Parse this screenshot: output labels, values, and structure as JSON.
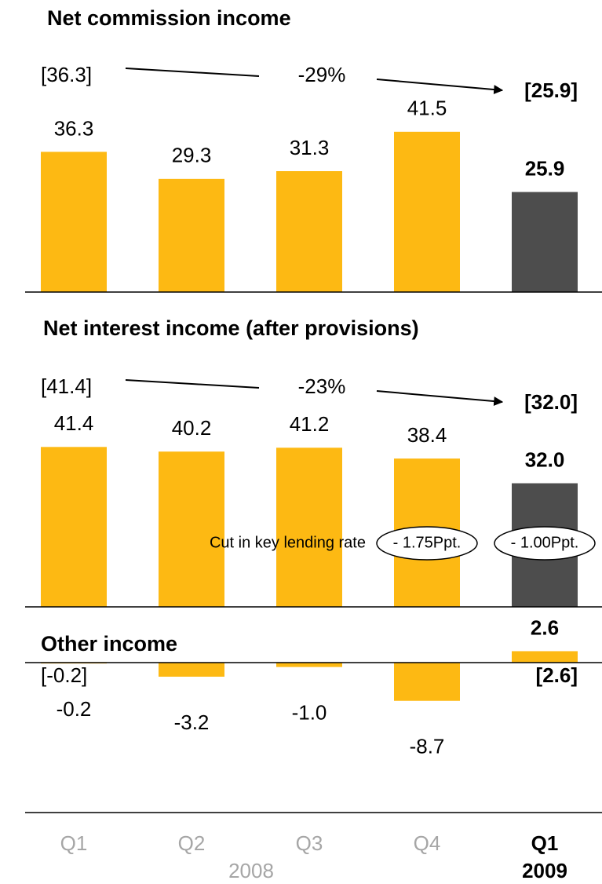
{
  "chart_data": [
    {
      "type": "bar",
      "title": "Net commission income",
      "values": [
        36.3,
        29.3,
        31.3,
        41.5,
        25.9
      ],
      "value_labels": [
        "36.3",
        "29.3",
        "31.3",
        "41.5",
        "25.9"
      ],
      "colors": [
        "#fdb913",
        "#fdb913",
        "#fdb913",
        "#fdb913",
        "#4d4d4d"
      ],
      "ylim": [
        0,
        50
      ],
      "annotations": {
        "start": "[36.3]",
        "change": "-29%",
        "end": "[25.9]"
      }
    },
    {
      "type": "bar",
      "title": "Net interest income (after provisions)",
      "values": [
        41.4,
        40.2,
        41.2,
        38.4,
        32.0
      ],
      "value_labels": [
        "41.4",
        "40.2",
        "41.2",
        "38.4",
        "32.0"
      ],
      "colors": [
        "#fdb913",
        "#fdb913",
        "#fdb913",
        "#fdb913",
        "#4d4d4d"
      ],
      "ylim": [
        0,
        50
      ],
      "annotations": {
        "start": "[41.4]",
        "change": "-23%",
        "end": "[32.0]"
      },
      "notes": {
        "text": "Cut in key lending rate",
        "marks": [
          "- 1.75Ppt.",
          "- 1.00Ppt."
        ]
      }
    },
    {
      "type": "bar",
      "title": "Other income",
      "values": [
        -0.2,
        -3.2,
        -1.0,
        -8.7,
        2.6
      ],
      "value_labels": [
        "-0.2",
        "-3.2",
        "-1.0",
        "-8.7",
        "2.6"
      ],
      "colors": [
        "#fdb913",
        "#fdb913",
        "#fdb913",
        "#fdb913",
        "#fdb913"
      ],
      "ylim": [
        -10,
        5
      ],
      "annotations": {
        "start": "[-0.2]",
        "end": "[2.6]"
      },
      "categories": [
        "Q1",
        "Q2",
        "Q3",
        "Q4",
        "Q1"
      ],
      "category_groups": [
        "2008",
        "2009"
      ]
    }
  ]
}
